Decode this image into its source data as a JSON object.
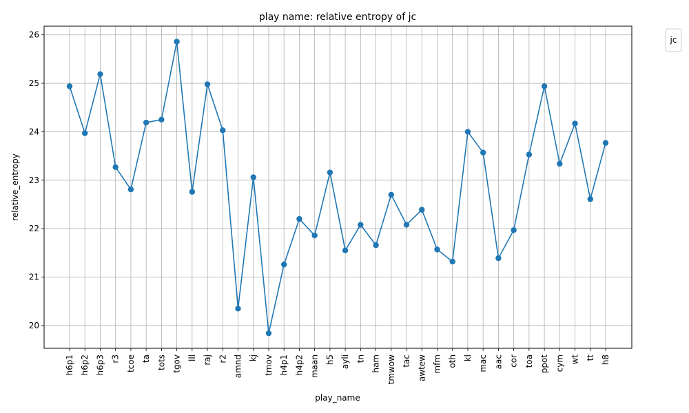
{
  "chart_data": {
    "type": "line",
    "title": "play name: relative entropy of jc",
    "xlabel": "play_name",
    "ylabel": "relative_entropy",
    "categories": [
      "h6p1",
      "h6p2",
      "h6p3",
      "r3",
      "tcoe",
      "ta",
      "tots",
      "tgov",
      "lll",
      "raj",
      "r2",
      "amnd",
      "kj",
      "tmov",
      "h4p1",
      "h4p2",
      "maan",
      "h5",
      "ayli",
      "tn",
      "ham",
      "tmwow",
      "tac",
      "awtew",
      "mfm",
      "oth",
      "kl",
      "mac",
      "aac",
      "cor",
      "toa",
      "ppot",
      "cym",
      "wt",
      "tt",
      "h8"
    ],
    "series": [
      {
        "name": "",
        "values": [
          24.94,
          23.97,
          25.19,
          23.27,
          22.81,
          24.19,
          24.25,
          25.86,
          22.76,
          24.98,
          24.03,
          20.35,
          23.06,
          19.84,
          21.26,
          22.2,
          21.86,
          23.16,
          21.55,
          22.08,
          21.66,
          22.7,
          22.08,
          22.39,
          21.57,
          21.32,
          24.0,
          23.57,
          21.39,
          21.97,
          23.53,
          24.94,
          23.34,
          24.17,
          22.61,
          23.77
        ],
        "color": "#1f77b4"
      }
    ],
    "ylim": [
      19.53,
      26.18
    ],
    "yticks": [
      20,
      21,
      22,
      23,
      24,
      25,
      26
    ],
    "grid": true,
    "legend": {
      "title": "jc",
      "placement": "outside-top-right"
    }
  }
}
